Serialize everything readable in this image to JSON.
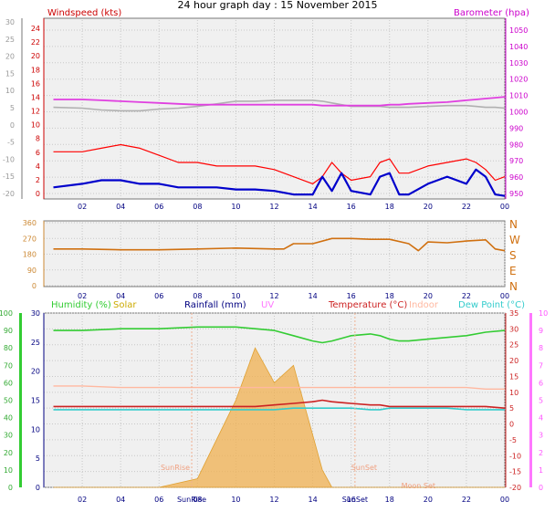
{
  "title": "24 hour graph day : 15 November 2015",
  "x_tick_labels": [
    "02",
    "04",
    "06",
    "08",
    "10",
    "12",
    "14",
    "16",
    "18",
    "20",
    "22",
    "00"
  ],
  "colors": {
    "panel_bg": "#f0f0f0",
    "grid": "#c8c8c8",
    "wind_axis": "#cc0000",
    "baro_axis": "#cc00cc",
    "wind_speed": "#ff0000",
    "wind_avg": "#0000cc",
    "barometer": "#e040e0",
    "indoor_baro": "#b0b0b0",
    "wind_dir": "#d07010",
    "humidity": "#33cc33",
    "solar": "#ccaa00",
    "rainfall": "#000080",
    "uv": "#ff77ff",
    "temperature": "#cc2222",
    "indoor": "#ffb8a0",
    "dew_point": "#33cccc",
    "solar_fill": "#f0b050"
  },
  "chart_data": [
    {
      "type": "line",
      "panel": "wind-barometer",
      "title": "",
      "left_axis_label": "Windspeed (kts)",
      "right_axis_label": "Barometer (hpa)",
      "left_ticks": [
        "24",
        "22",
        "20",
        "18",
        "16",
        "14",
        "12",
        "10",
        "8",
        "6",
        "4",
        "2",
        "0"
      ],
      "outer_left_ticks": [
        "30",
        "25",
        "20",
        "15",
        "10",
        "5",
        "0",
        "-5",
        "-10",
        "-15",
        "-20"
      ],
      "right_ticks": [
        "1050",
        "1040",
        "1030",
        "1020",
        "1010",
        "1000",
        "990",
        "980",
        "970",
        "960",
        "950"
      ],
      "ylim_wind": [
        0,
        25
      ],
      "ylim_baro": [
        950,
        1052
      ],
      "x_hours": [
        0.5,
        2,
        3,
        4,
        5,
        6,
        7,
        8,
        9,
        10,
        11,
        12,
        13,
        14,
        14.5,
        15,
        15.5,
        16,
        17,
        17.5,
        18,
        18.5,
        19,
        20,
        21,
        22,
        22.5,
        23,
        23.5,
        24
      ],
      "series": [
        {
          "name": "Wind Speed",
          "values": [
            6.5,
            6.5,
            7,
            7.5,
            7,
            6,
            5,
            5,
            4.5,
            4.5,
            4.5,
            4,
            3,
            2,
            3,
            5,
            3.5,
            2.5,
            3,
            5,
            5.5,
            3.5,
            3.5,
            4.5,
            5,
            5.5,
            5,
            4,
            2.5,
            3
          ]
        },
        {
          "name": "Average Speed",
          "values": [
            1.5,
            2,
            2.5,
            2.5,
            2,
            2,
            1.5,
            1.5,
            1.5,
            1.2,
            1.2,
            1,
            0.5,
            0.5,
            3,
            1,
            3.5,
            1,
            0.5,
            3,
            3.5,
            0.5,
            0.5,
            2,
            3,
            2,
            4,
            3,
            0.5,
            0.3
          ]
        },
        {
          "name": "Barometer",
          "values": [
            1006.5,
            1006.5,
            1006,
            1005.5,
            1005,
            1004.5,
            1004,
            1003.5,
            1003.5,
            1003.5,
            1003.5,
            1003.5,
            1003.5,
            1003.5,
            1003,
            1003,
            1003,
            1003,
            1003,
            1003,
            1003.5,
            1003.5,
            1004,
            1004.5,
            1005,
            1006,
            1006.5,
            1007,
            1007.5,
            1008
          ]
        },
        {
          "name": "Indoor Barometer",
          "values": [
            1002,
            1001.5,
            1000.5,
            1000,
            1000,
            1001,
            1001.5,
            1002.5,
            1004,
            1005.5,
            1005.5,
            1006,
            1006,
            1006,
            1005.5,
            1004.5,
            1003.5,
            1002.5,
            1002.5,
            1002.5,
            1002,
            1002,
            1002,
            1002.5,
            1003,
            1003,
            1002.5,
            1002,
            1002,
            1001.5
          ]
        }
      ]
    },
    {
      "type": "line",
      "panel": "wind-direction",
      "left_ticks": [
        "360",
        "270",
        "180",
        "90",
        "0"
      ],
      "right_ticks": [
        "N",
        "W",
        "S",
        "E",
        "N"
      ],
      "ylim": [
        0,
        360
      ],
      "x_hours": [
        0.5,
        2,
        4,
        6,
        8,
        10,
        12,
        12.5,
        13,
        14,
        15,
        16,
        17,
        18,
        19,
        19.5,
        20,
        21,
        22,
        23,
        23.5,
        24
      ],
      "series": [
        {
          "name": "Wind Direction",
          "values": [
            210,
            210,
            205,
            205,
            210,
            215,
            210,
            210,
            240,
            240,
            270,
            270,
            265,
            265,
            240,
            200,
            250,
            245,
            255,
            262,
            210,
            200
          ]
        }
      ]
    },
    {
      "type": "line",
      "panel": "temperature-humidity",
      "legend": [
        "Humidity (%)",
        "Solar",
        "Rainfall (mm)",
        "UV",
        "Temperature (°C)",
        "Indoor",
        "Dew Point (°C)"
      ],
      "humidity_ticks": [
        "100",
        "90",
        "80",
        "70",
        "60",
        "50",
        "40",
        "30",
        "20",
        "10",
        "0"
      ],
      "rain_ticks": [
        "30",
        "25",
        "20",
        "15",
        "10",
        "5",
        "0"
      ],
      "right_temp_ticks": [
        "35",
        "30",
        "25",
        "20",
        "15",
        "10",
        "5",
        "0",
        "-5",
        "-10",
        "-15",
        "-20"
      ],
      "uv_ticks": [
        "10",
        "9",
        "8",
        "7",
        "6",
        "5",
        "4",
        "3",
        "2",
        "1",
        "0"
      ],
      "ylim_humidity": [
        0,
        100
      ],
      "ylim_temp": [
        -20,
        35
      ],
      "x_hours": [
        0.5,
        2,
        4,
        6,
        8,
        10,
        11,
        12,
        13,
        14,
        14.5,
        15,
        16,
        17,
        17.5,
        18,
        18.5,
        19,
        20,
        21,
        22,
        23,
        24
      ],
      "series": [
        {
          "name": "Humidity",
          "values": [
            90,
            90,
            91,
            91,
            92,
            92,
            91,
            90,
            87,
            84,
            83,
            84,
            87,
            88,
            87,
            85,
            84,
            84,
            85,
            86,
            87,
            89,
            90
          ]
        },
        {
          "name": "Temperature",
          "values": [
            5.5,
            5.5,
            5.5,
            5.5,
            5.5,
            5.5,
            5.5,
            6,
            6.5,
            7,
            7.5,
            7,
            6.5,
            6,
            6,
            5.5,
            5.5,
            5.5,
            5.5,
            5.5,
            5.5,
            5.5,
            5
          ]
        },
        {
          "name": "Dew Point",
          "values": [
            4.5,
            4.5,
            4.5,
            4.5,
            4.5,
            4.5,
            4.5,
            4.5,
            5,
            5,
            5,
            5,
            5,
            4.5,
            4.5,
            5,
            5,
            5,
            5,
            5,
            4.5,
            4.5,
            4.5
          ]
        },
        {
          "name": "Indoor",
          "values": [
            12,
            12,
            11.5,
            11.5,
            11.5,
            11.5,
            11.5,
            11.5,
            11.5,
            11.5,
            11.5,
            11.5,
            11.5,
            11.5,
            11.5,
            11.5,
            11.5,
            11.5,
            11.5,
            11.5,
            11.5,
            11,
            11
          ]
        },
        {
          "name": "Solar",
          "values": [
            0,
            0,
            0,
            0,
            0.5,
            5,
            8,
            6,
            7,
            3,
            1,
            0,
            0,
            0,
            0,
            0,
            0,
            0,
            0,
            0,
            0,
            0,
            0
          ]
        }
      ],
      "annotations": {
        "sunrise_label": "SunRise",
        "sunset_label": "SunSet",
        "moonset_label": "Moon Set",
        "sunrise_hour": 7.7,
        "sunset_hour": 16.2,
        "moonset_hour": 19.5
      }
    }
  ]
}
